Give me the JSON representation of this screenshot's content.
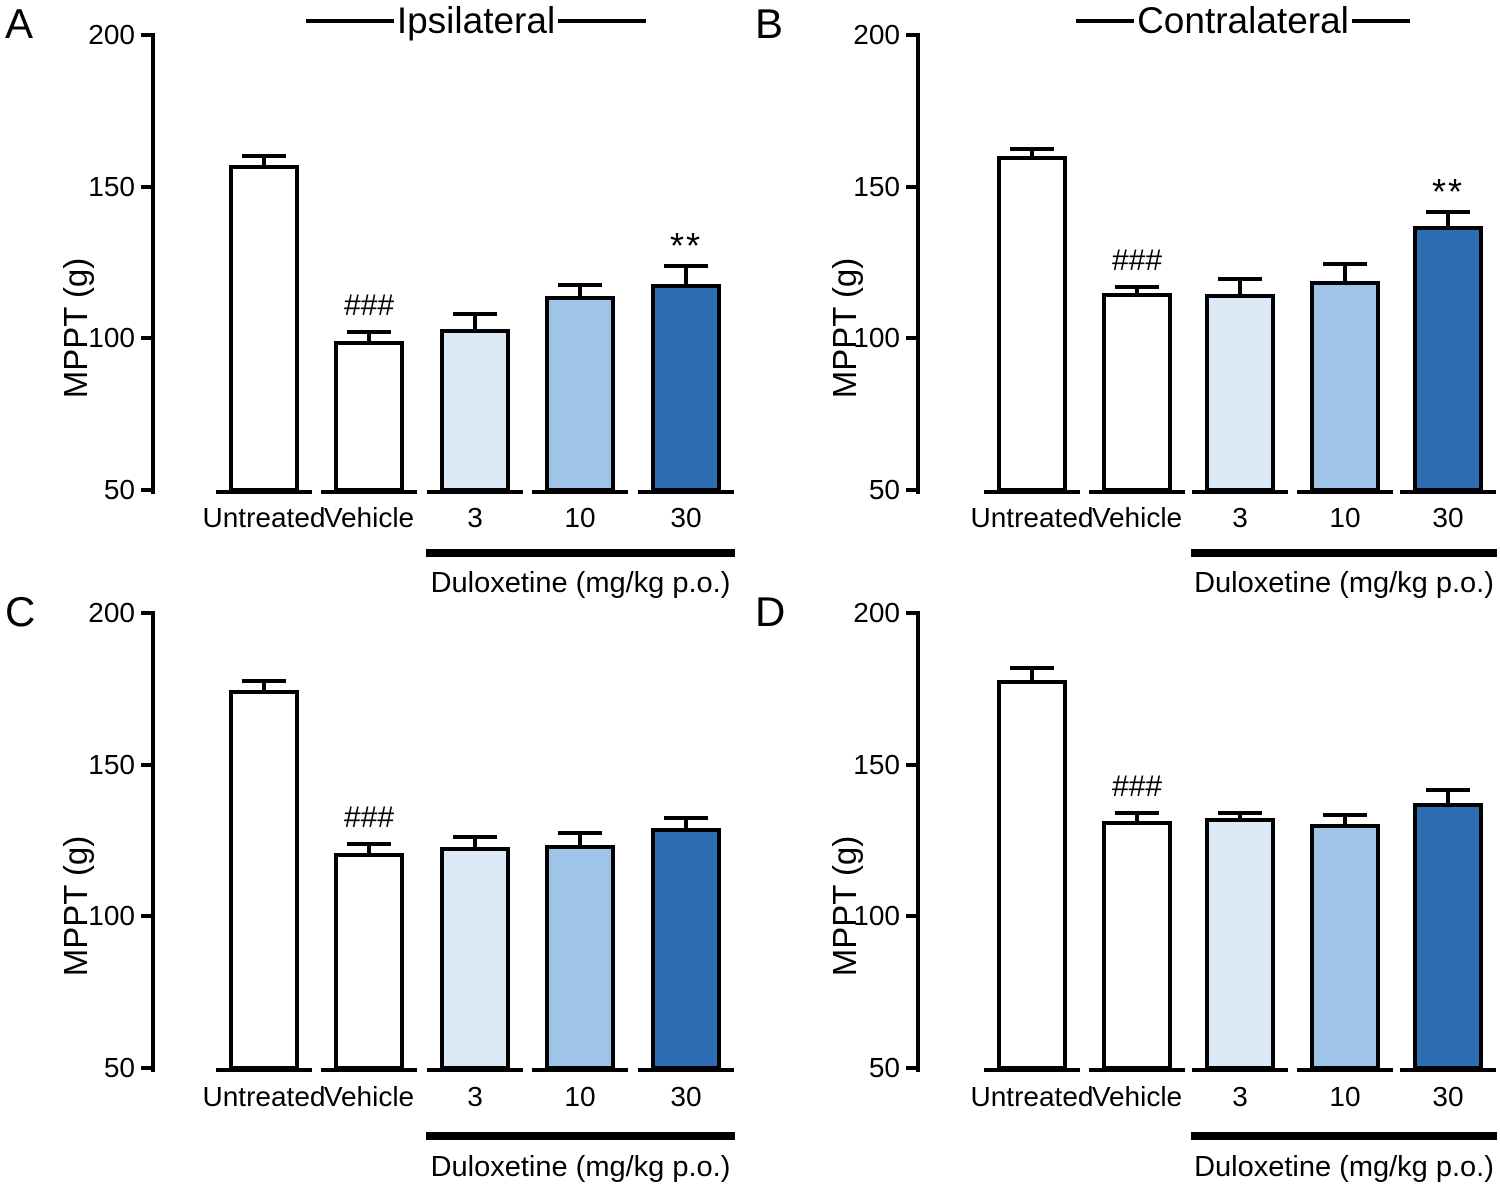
{
  "figure": {
    "background": "#ffffff",
    "ink_color": "#000000",
    "dot_pattern_color": "#15151e"
  },
  "chart_data": [
    {
      "id": "A",
      "panel_letter": "A",
      "type": "bar",
      "title": "Ipsilateral",
      "ylabel": "MPPT (g)",
      "ylim": [
        50,
        200
      ],
      "yticks": [
        200,
        150,
        100,
        50
      ],
      "categories": [
        "Untreated",
        "Vehicle",
        "3",
        "10",
        "30"
      ],
      "values": [
        157,
        99,
        103,
        114,
        118
      ],
      "errors": [
        3,
        3,
        5,
        3.5,
        6
      ],
      "bar_style": "dotted",
      "bar_colors": [
        "#ffffff",
        "#ffffff",
        "#dce9f6",
        "#9ec5e8",
        "#2d6db1"
      ],
      "significance": [
        {
          "category_index": 1,
          "label": "###"
        },
        {
          "category_index": 4,
          "label": "**"
        }
      ],
      "group_label": "Duloxetine (mg/kg p.o.)",
      "group_categories": [
        "3",
        "10",
        "30"
      ]
    },
    {
      "id": "B",
      "panel_letter": "B",
      "type": "bar",
      "title": "Contralateral",
      "ylabel": "MPPT (g)",
      "ylim": [
        50,
        200
      ],
      "yticks": [
        200,
        150,
        100,
        50
      ],
      "categories": [
        "Untreated",
        "Vehicle",
        "3",
        "10",
        "30"
      ],
      "values": [
        160,
        115,
        114.5,
        119,
        137
      ],
      "errors": [
        2.5,
        2,
        5,
        5.5,
        4.5
      ],
      "bar_style": "solid",
      "bar_colors": [
        "#ffffff",
        "#ffffff",
        "#dce9f6",
        "#9ec5e8",
        "#2d6db1"
      ],
      "significance": [
        {
          "category_index": 1,
          "label": "###"
        },
        {
          "category_index": 4,
          "label": "**"
        }
      ],
      "group_label": "Duloxetine (mg/kg p.o.)",
      "group_categories": [
        "3",
        "10",
        "30"
      ]
    },
    {
      "id": "C",
      "panel_letter": "C",
      "type": "bar",
      "title": "",
      "ylabel": "MPPT (g)",
      "ylim": [
        50,
        200
      ],
      "yticks": [
        200,
        150,
        100,
        50
      ],
      "categories": [
        "Untreated",
        "Vehicle",
        "3",
        "10",
        "30"
      ],
      "values": [
        174.5,
        121,
        123,
        123.5,
        129
      ],
      "errors": [
        3,
        3,
        3,
        4,
        3.5
      ],
      "bar_style": "dotted",
      "bar_colors": [
        "#ffffff",
        "#ffffff",
        "#dce9f6",
        "#9ec5e8",
        "#2d6db1"
      ],
      "significance": [
        {
          "category_index": 1,
          "label": "###"
        }
      ],
      "group_label": "Duloxetine (mg/kg p.o.)",
      "group_categories": [
        "3",
        "10",
        "30"
      ]
    },
    {
      "id": "D",
      "panel_letter": "D",
      "type": "bar",
      "title": "",
      "ylabel": "MPPT (g)",
      "ylim": [
        50,
        200
      ],
      "yticks": [
        200,
        150,
        100,
        50
      ],
      "categories": [
        "Untreated",
        "Vehicle",
        "3",
        "10",
        "30"
      ],
      "values": [
        178,
        131.5,
        132.5,
        130.5,
        137.5
      ],
      "errors": [
        4,
        2.5,
        1.5,
        3,
        4
      ],
      "bar_style": "solid",
      "bar_colors": [
        "#ffffff",
        "#ffffff",
        "#dce9f6",
        "#9ec5e8",
        "#2d6db1"
      ],
      "significance": [
        {
          "category_index": 1,
          "label": "###"
        }
      ],
      "group_label": "Duloxetine (mg/kg p.o.)",
      "group_categories": [
        "3",
        "10",
        "30"
      ]
    }
  ]
}
